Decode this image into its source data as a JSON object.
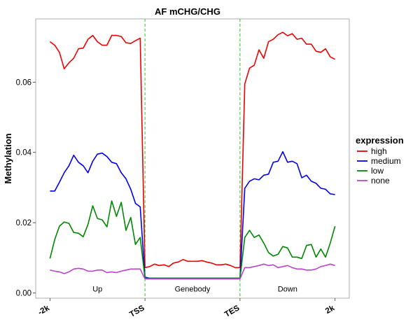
{
  "chart_data": {
    "type": "line",
    "title": "AF mCHG/CHG",
    "xlabel": "",
    "ylabel": "Methylation",
    "x_tick_labels": [
      "-2k",
      "TSS",
      "TES",
      "2k"
    ],
    "x_tick_positions": [
      0,
      20,
      40,
      60
    ],
    "xlim": [
      -3,
      63
    ],
    "ylim": [
      -0.0015,
      0.078
    ],
    "y_ticks": [
      0.0,
      0.02,
      0.04,
      0.06
    ],
    "y_tick_labels": [
      "0.00",
      "0.02",
      "0.04",
      "0.06"
    ],
    "region_labels": [
      "Up",
      "Genebody",
      "Down"
    ],
    "region_label_x": [
      10,
      30,
      50
    ],
    "region_label_y": 0.0004,
    "vlines": [
      20,
      40
    ],
    "vline_color": "#22cc22",
    "legend": {
      "title": "expression",
      "position": "right"
    },
    "series": [
      {
        "name": "high",
        "color": "#ee0000",
        "x": [
          0,
          1,
          2,
          3,
          4,
          5,
          6,
          7,
          8,
          9,
          10,
          11,
          12,
          13,
          14,
          15,
          16,
          17,
          18,
          19,
          20,
          21,
          22,
          23,
          24,
          25,
          26,
          27,
          28,
          29,
          30,
          31,
          32,
          33,
          34,
          35,
          36,
          37,
          38,
          39,
          40,
          41,
          42,
          43,
          44,
          45,
          46,
          47,
          48,
          49,
          50,
          51,
          52,
          53,
          54,
          55,
          56,
          57,
          58,
          59,
          60
        ],
        "values": [
          0.0715,
          0.0705,
          0.0685,
          0.0638,
          0.0655,
          0.0668,
          0.0695,
          0.0697,
          0.0722,
          0.0733,
          0.0715,
          0.0705,
          0.0705,
          0.0733,
          0.0733,
          0.073,
          0.0712,
          0.071,
          0.0718,
          0.0725,
          0.0072,
          0.0075,
          0.0082,
          0.0078,
          0.008,
          0.0075,
          0.0085,
          0.0088,
          0.0095,
          0.009,
          0.009,
          0.009,
          0.0092,
          0.0088,
          0.0085,
          0.008,
          0.008,
          0.0082,
          0.0078,
          0.0072,
          0.0072,
          0.0595,
          0.064,
          0.0648,
          0.0692,
          0.0668,
          0.0715,
          0.0722,
          0.0735,
          0.0742,
          0.0732,
          0.0738,
          0.0722,
          0.0725,
          0.0708,
          0.0708,
          0.0688,
          0.0685,
          0.0695,
          0.0672,
          0.0665
        ]
      },
      {
        "name": "medium",
        "color": "#0000ee",
        "x": [
          0,
          1,
          2,
          3,
          4,
          5,
          6,
          7,
          8,
          9,
          10,
          11,
          12,
          13,
          14,
          15,
          16,
          17,
          18,
          19,
          20,
          21,
          22,
          23,
          24,
          25,
          26,
          27,
          28,
          29,
          30,
          31,
          32,
          33,
          34,
          35,
          36,
          37,
          38,
          39,
          40,
          41,
          42,
          43,
          44,
          45,
          46,
          47,
          48,
          49,
          50,
          51,
          52,
          53,
          54,
          55,
          56,
          57,
          58,
          59,
          60
        ],
        "values": [
          0.029,
          0.029,
          0.0315,
          0.0342,
          0.0362,
          0.0392,
          0.0372,
          0.0362,
          0.0342,
          0.0375,
          0.0395,
          0.0398,
          0.0388,
          0.0372,
          0.0368,
          0.0342,
          0.0325,
          0.0295,
          0.0255,
          0.0245,
          0.0045,
          0.0042,
          0.0042,
          0.0042,
          0.0042,
          0.0042,
          0.0042,
          0.0042,
          0.0042,
          0.0042,
          0.0042,
          0.0042,
          0.0042,
          0.0042,
          0.0042,
          0.0042,
          0.0042,
          0.0042,
          0.0042,
          0.0042,
          0.0042,
          0.0298,
          0.0318,
          0.0325,
          0.0322,
          0.0335,
          0.0338,
          0.0372,
          0.0375,
          0.0402,
          0.0372,
          0.0375,
          0.0368,
          0.0328,
          0.0335,
          0.0318,
          0.0312,
          0.0298,
          0.0295,
          0.0282,
          0.028
        ]
      },
      {
        "name": "low",
        "color": "#008800",
        "x": [
          0,
          1,
          2,
          3,
          4,
          5,
          6,
          7,
          8,
          9,
          10,
          11,
          12,
          13,
          14,
          15,
          16,
          17,
          18,
          19,
          20,
          21,
          22,
          23,
          24,
          25,
          26,
          27,
          28,
          29,
          30,
          31,
          32,
          33,
          34,
          35,
          36,
          37,
          38,
          39,
          40,
          41,
          42,
          43,
          44,
          45,
          46,
          47,
          48,
          49,
          50,
          51,
          52,
          53,
          54,
          55,
          56,
          57,
          58,
          59,
          60
        ],
        "values": [
          0.0098,
          0.0152,
          0.019,
          0.0202,
          0.0198,
          0.0172,
          0.017,
          0.016,
          0.0195,
          0.0248,
          0.0212,
          0.0208,
          0.0188,
          0.0262,
          0.0218,
          0.0258,
          0.0178,
          0.0215,
          0.0138,
          0.0158,
          0.0042,
          0.0042,
          0.0042,
          0.0042,
          0.0042,
          0.0042,
          0.0042,
          0.0042,
          0.0042,
          0.0042,
          0.0042,
          0.0042,
          0.0042,
          0.0042,
          0.0042,
          0.0042,
          0.0042,
          0.0042,
          0.0042,
          0.0042,
          0.0042,
          0.0158,
          0.0178,
          0.0158,
          0.0165,
          0.0142,
          0.0115,
          0.0105,
          0.011,
          0.0132,
          0.0128,
          0.0102,
          0.0102,
          0.0098,
          0.0135,
          0.0138,
          0.0102,
          0.0125,
          0.0102,
          0.0142,
          0.019
        ]
      },
      {
        "name": "none",
        "color": "#bb44cc",
        "x": [
          0,
          1,
          2,
          3,
          4,
          5,
          6,
          7,
          8,
          9,
          10,
          11,
          12,
          13,
          14,
          15,
          16,
          17,
          18,
          19,
          20,
          21,
          22,
          23,
          24,
          25,
          26,
          27,
          28,
          29,
          30,
          31,
          32,
          33,
          34,
          35,
          36,
          37,
          38,
          39,
          40,
          41,
          42,
          43,
          44,
          45,
          46,
          47,
          48,
          49,
          50,
          51,
          52,
          53,
          54,
          55,
          56,
          57,
          58,
          59,
          60
        ],
        "values": [
          0.0065,
          0.0062,
          0.006,
          0.0055,
          0.006,
          0.0068,
          0.007,
          0.0068,
          0.0062,
          0.0062,
          0.0065,
          0.0065,
          0.0058,
          0.006,
          0.0058,
          0.0062,
          0.0065,
          0.0068,
          0.0068,
          0.0068,
          0.004,
          0.004,
          0.004,
          0.004,
          0.004,
          0.004,
          0.004,
          0.004,
          0.004,
          0.004,
          0.004,
          0.004,
          0.004,
          0.004,
          0.004,
          0.004,
          0.004,
          0.004,
          0.004,
          0.004,
          0.004,
          0.0072,
          0.0072,
          0.0075,
          0.0078,
          0.0082,
          0.0078,
          0.008,
          0.0072,
          0.0075,
          0.0078,
          0.0072,
          0.0068,
          0.0068,
          0.0065,
          0.0065,
          0.0068,
          0.0075,
          0.0078,
          0.0082,
          0.0078
        ]
      }
    ]
  }
}
